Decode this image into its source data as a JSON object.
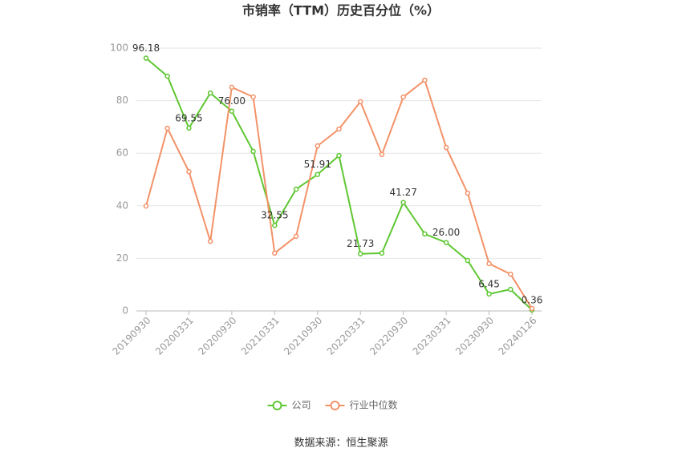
{
  "chart_data": {
    "type": "line",
    "title": "市销率（TTM）历史百分位（%）",
    "categories": [
      "20190930",
      null,
      "20200331",
      null,
      "20200930",
      null,
      "20210331",
      null,
      "20210930",
      null,
      "20220331",
      null,
      "20220930",
      null,
      "20230331",
      null,
      "20230930",
      null,
      "20240126"
    ],
    "series": [
      {
        "name": "公司",
        "color": "#5fc732",
        "values": [
          96.18,
          89.3,
          69.55,
          82.9,
          76.0,
          60.7,
          32.55,
          46.3,
          51.91,
          59.1,
          21.73,
          22.0,
          41.27,
          29.3,
          26.0,
          19.2,
          6.45,
          8.2,
          0.36
        ],
        "value_labels": [
          "96.18",
          null,
          "69.55",
          null,
          "76.00",
          null,
          "32.55",
          null,
          "51.91",
          null,
          "21.73",
          null,
          "41.27",
          null,
          "26.00",
          null,
          "6.45",
          null,
          "0.36"
        ]
      },
      {
        "name": "行业中位数",
        "color": "#f39268",
        "values": [
          39.9,
          69.5,
          53.0,
          26.5,
          85.1,
          81.4,
          22.0,
          28.4,
          62.8,
          69.2,
          79.6,
          59.5,
          81.4,
          87.8,
          62.2,
          44.8,
          18.0,
          14.0,
          0.9
        ]
      }
    ],
    "ylim": [
      0,
      100
    ],
    "yticks": [
      0,
      20,
      40,
      60,
      80,
      100
    ],
    "grid": true,
    "legend": "bottom",
    "source": "数据来源：恒生聚源"
  }
}
